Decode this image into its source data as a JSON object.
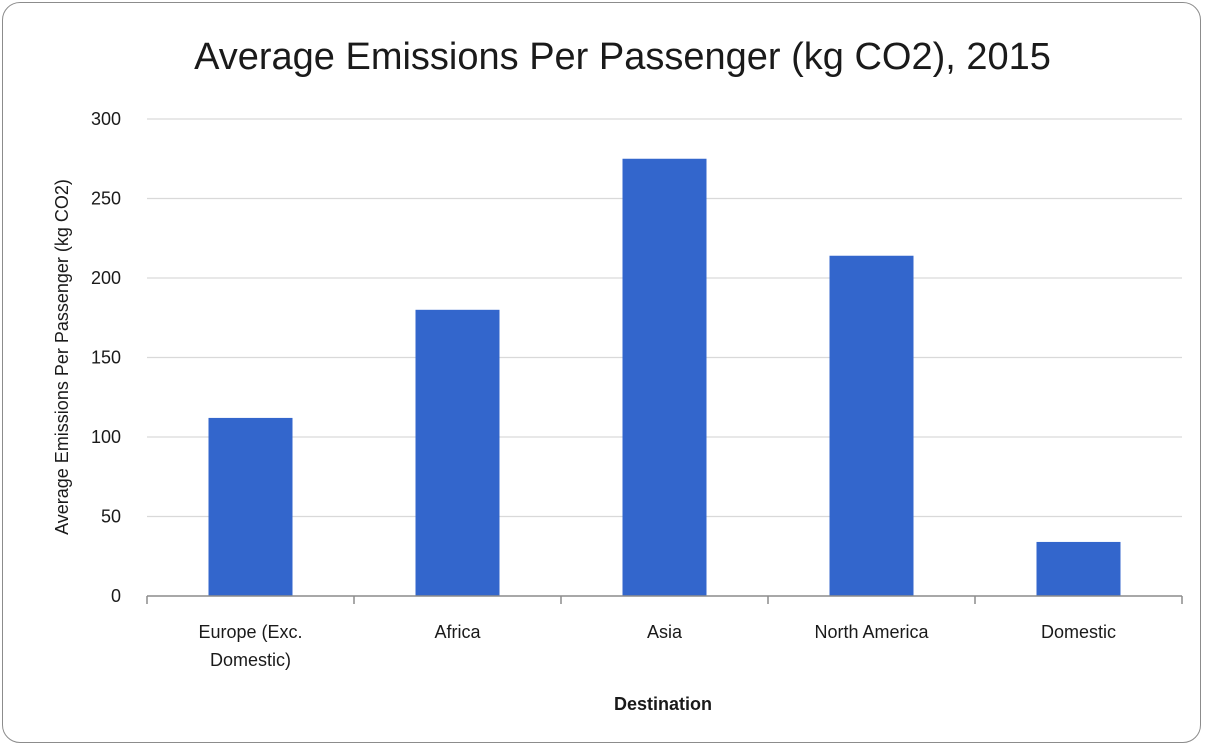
{
  "chart_data": {
    "type": "bar",
    "title": "Average Emissions Per Passenger (kg CO2), 2015",
    "xlabel": "Destination",
    "ylabel": "Average Emissions Per Passenger (kg CO2)",
    "categories": [
      [
        "Europe (Exc.",
        "Domestic)"
      ],
      [
        "Africa"
      ],
      [
        "Asia"
      ],
      [
        "North America"
      ],
      [
        "Domestic"
      ]
    ],
    "values": [
      112,
      180,
      275,
      214,
      34
    ],
    "ylim": [
      0,
      300
    ],
    "yticks": [
      "0",
      "50",
      "100",
      "150",
      "200",
      "250",
      "300"
    ],
    "grid": true,
    "legend": "none",
    "bar_color": "#3366cc",
    "grid_color": "#d9d9d9",
    "axis_color": "#8c8c8c"
  }
}
